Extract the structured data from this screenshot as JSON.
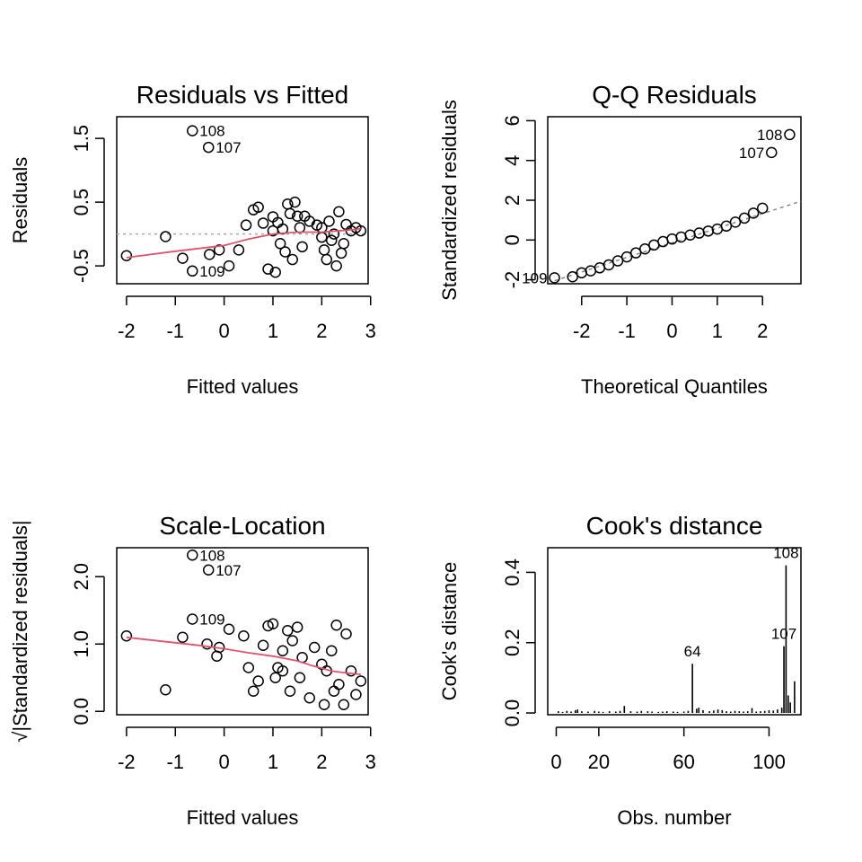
{
  "chart_data": [
    {
      "type": "scatter",
      "title": "Residuals vs Fitted",
      "xlabel": "Fitted values",
      "ylabel": "Residuals",
      "xlim": [
        -2.2,
        2.95
      ],
      "ylim": [
        -0.78,
        1.84
      ],
      "xticks": [
        -2,
        -1,
        0,
        1,
        2,
        3
      ],
      "xtick_labels": [
        "-2",
        "-1",
        "0",
        "1",
        "2",
        "3"
      ],
      "yticks": [
        -0.5,
        0.5,
        1.5
      ],
      "ytick_labels": [
        "-0.5",
        "0.5",
        "1.5"
      ],
      "refline_y": 0,
      "points": [
        [
          -0.65,
          1.62
        ],
        [
          -0.32,
          1.36
        ],
        [
          -0.65,
          -0.58
        ],
        [
          -2.0,
          -0.34
        ],
        [
          -1.2,
          -0.04
        ],
        [
          -0.85,
          -0.38
        ],
        [
          -0.3,
          -0.32
        ],
        [
          -0.1,
          -0.25
        ],
        [
          0.1,
          -0.5
        ],
        [
          0.45,
          0.14
        ],
        [
          0.6,
          0.38
        ],
        [
          0.7,
          0.42
        ],
        [
          0.8,
          0.17
        ],
        [
          0.9,
          -0.55
        ],
        [
          1.0,
          0.27
        ],
        [
          1.05,
          -0.6
        ],
        [
          1.1,
          0.18
        ],
        [
          1.15,
          -0.15
        ],
        [
          1.2,
          0.08
        ],
        [
          1.25,
          -0.28
        ],
        [
          1.3,
          0.47
        ],
        [
          1.35,
          0.32
        ],
        [
          1.4,
          -0.4
        ],
        [
          1.45,
          0.5
        ],
        [
          1.5,
          0.28
        ],
        [
          1.55,
          0.1
        ],
        [
          1.65,
          0.28
        ],
        [
          1.75,
          0.2
        ],
        [
          1.9,
          0.14
        ],
        [
          2.0,
          0.1
        ],
        [
          2.05,
          -0.25
        ],
        [
          2.1,
          -0.4
        ],
        [
          2.15,
          0.2
        ],
        [
          2.2,
          -0.1
        ],
        [
          2.25,
          0.0
        ],
        [
          2.3,
          -0.5
        ],
        [
          2.35,
          0.35
        ],
        [
          2.4,
          -0.3
        ],
        [
          2.5,
          0.15
        ],
        [
          2.6,
          0.05
        ],
        [
          2.7,
          0.1
        ],
        [
          2.8,
          0.05
        ],
        [
          0.3,
          -0.25
        ],
        [
          1.0,
          0.05
        ],
        [
          1.6,
          -0.2
        ],
        [
          2.45,
          -0.15
        ],
        [
          2.0,
          -0.05
        ]
      ],
      "smooth": [
        [
          -2.0,
          -0.37
        ],
        [
          -1.0,
          -0.27
        ],
        [
          0.0,
          -0.18
        ],
        [
          0.5,
          -0.08
        ],
        [
          1.0,
          0.0
        ],
        [
          1.5,
          0.03
        ],
        [
          2.0,
          0.03
        ],
        [
          2.5,
          0.06
        ],
        [
          2.8,
          0.08
        ]
      ],
      "labels": [
        {
          "x": -0.65,
          "y": 1.62,
          "text": "108"
        },
        {
          "x": -0.32,
          "y": 1.36,
          "text": "107"
        },
        {
          "x": -0.65,
          "y": -0.58,
          "text": "109"
        }
      ]
    },
    {
      "type": "scatter",
      "title": "Q-Q Residuals",
      "xlabel": "Theoretical Quantiles",
      "ylabel": "Standardized residuals",
      "xlim": [
        -2.75,
        2.85
      ],
      "ylim": [
        -2.2,
        6.2
      ],
      "xticks": [
        -2,
        -1,
        0,
        1,
        2
      ],
      "xtick_labels": [
        "-2",
        "-1",
        "0",
        "1",
        "2"
      ],
      "yticks": [
        -2,
        0,
        2,
        4,
        6
      ],
      "ytick_labels": [
        "-2",
        "0",
        "2",
        "4",
        "6"
      ],
      "refline": [
        [
          -2.6,
          -2.05
        ],
        [
          2.85,
          1.95
        ]
      ],
      "points": [
        [
          2.6,
          5.3
        ],
        [
          2.2,
          4.4
        ],
        [
          -2.6,
          -1.9
        ],
        [
          -2.2,
          -1.85
        ],
        [
          -2.0,
          -1.65
        ],
        [
          -1.8,
          -1.55
        ],
        [
          -1.6,
          -1.4
        ],
        [
          -1.4,
          -1.25
        ],
        [
          -1.2,
          -1.05
        ],
        [
          -1.0,
          -0.85
        ],
        [
          -0.8,
          -0.65
        ],
        [
          -0.6,
          -0.45
        ],
        [
          -0.4,
          -0.25
        ],
        [
          -0.2,
          -0.08
        ],
        [
          0.0,
          0.05
        ],
        [
          0.2,
          0.15
        ],
        [
          0.4,
          0.25
        ],
        [
          0.6,
          0.35
        ],
        [
          0.8,
          0.45
        ],
        [
          1.0,
          0.55
        ],
        [
          1.2,
          0.7
        ],
        [
          1.4,
          0.9
        ],
        [
          1.6,
          1.1
        ],
        [
          1.8,
          1.35
        ],
        [
          2.0,
          1.6
        ]
      ],
      "labels": [
        {
          "x": 2.6,
          "y": 5.3,
          "text": "108"
        },
        {
          "x": 2.2,
          "y": 4.4,
          "text": "107"
        },
        {
          "x": -2.6,
          "y": -1.9,
          "text": "109"
        }
      ]
    },
    {
      "type": "scatter",
      "title": "Scale-Location",
      "xlabel": "Fitted values",
      "ylabel": "√|Standardized residuals|",
      "xlim": [
        -2.2,
        2.95
      ],
      "ylim": [
        -0.05,
        2.43
      ],
      "xticks": [
        -2,
        -1,
        0,
        1,
        2,
        3
      ],
      "xtick_labels": [
        "-2",
        "-1",
        "0",
        "1",
        "2",
        "3"
      ],
      "yticks": [
        0.0,
        1.0,
        2.0
      ],
      "ytick_labels": [
        "0.0",
        "1.0",
        "2.0"
      ],
      "points": [
        [
          -0.65,
          2.32
        ],
        [
          -0.32,
          2.1
        ],
        [
          -0.65,
          1.37
        ],
        [
          -2.0,
          1.12
        ],
        [
          -1.2,
          0.32
        ],
        [
          -0.85,
          1.1
        ],
        [
          -0.35,
          1.0
        ],
        [
          -0.1,
          0.95
        ],
        [
          -0.15,
          0.82
        ],
        [
          0.1,
          1.22
        ],
        [
          0.4,
          1.12
        ],
        [
          0.5,
          0.65
        ],
        [
          0.6,
          0.3
        ],
        [
          0.8,
          0.98
        ],
        [
          0.9,
          1.27
        ],
        [
          1.0,
          1.3
        ],
        [
          1.05,
          0.5
        ],
        [
          1.1,
          0.65
        ],
        [
          1.2,
          0.9
        ],
        [
          1.3,
          1.2
        ],
        [
          1.35,
          0.3
        ],
        [
          1.4,
          1.05
        ],
        [
          1.5,
          1.25
        ],
        [
          1.6,
          0.8
        ],
        [
          1.75,
          0.2
        ],
        [
          1.85,
          0.95
        ],
        [
          2.0,
          0.7
        ],
        [
          2.05,
          0.1
        ],
        [
          2.1,
          0.6
        ],
        [
          2.2,
          0.9
        ],
        [
          2.3,
          1.28
        ],
        [
          2.35,
          0.4
        ],
        [
          2.45,
          0.1
        ],
        [
          2.5,
          1.15
        ],
        [
          2.6,
          0.6
        ],
        [
          2.7,
          0.25
        ],
        [
          2.8,
          0.45
        ],
        [
          1.2,
          0.6
        ],
        [
          0.7,
          0.45
        ],
        [
          1.55,
          0.5
        ],
        [
          2.25,
          0.3
        ]
      ],
      "smooth": [
        [
          -2.0,
          1.1
        ],
        [
          -1.0,
          1.02
        ],
        [
          -0.5,
          0.98
        ],
        [
          0.0,
          0.93
        ],
        [
          0.5,
          0.87
        ],
        [
          1.0,
          0.82
        ],
        [
          1.5,
          0.75
        ],
        [
          1.8,
          0.68
        ],
        [
          2.2,
          0.6
        ],
        [
          2.5,
          0.57
        ],
        [
          2.8,
          0.55
        ]
      ],
      "labels": [
        {
          "x": -0.65,
          "y": 2.32,
          "text": "108"
        },
        {
          "x": -0.32,
          "y": 2.1,
          "text": "107"
        },
        {
          "x": -0.65,
          "y": 1.37,
          "text": "109"
        }
      ]
    },
    {
      "type": "bar",
      "title": "Cook's distance",
      "xlabel": "Obs. number",
      "ylabel": "Cook's distance",
      "xlim": [
        -4,
        115
      ],
      "ylim": [
        -0.005,
        0.47
      ],
      "xticks": [
        0,
        20,
        60,
        100
      ],
      "xtick_labels": [
        "0",
        "20",
        "60",
        "100"
      ],
      "yticks": [
        0.0,
        0.2,
        0.4
      ],
      "ytick_labels": [
        "0.0",
        "0.2",
        "0.4"
      ],
      "bars": [
        [
          1,
          0.005
        ],
        [
          3,
          0.003
        ],
        [
          5,
          0.006
        ],
        [
          7,
          0.004
        ],
        [
          9,
          0.008
        ],
        [
          10,
          0.01
        ],
        [
          12,
          0.005
        ],
        [
          15,
          0.004
        ],
        [
          18,
          0.006
        ],
        [
          20,
          0.004
        ],
        [
          22,
          0.003
        ],
        [
          25,
          0.005
        ],
        [
          28,
          0.004
        ],
        [
          30,
          0.006
        ],
        [
          32,
          0.02
        ],
        [
          35,
          0.005
        ],
        [
          38,
          0.004
        ],
        [
          40,
          0.006
        ],
        [
          43,
          0.005
        ],
        [
          45,
          0.004
        ],
        [
          48,
          0.003
        ],
        [
          50,
          0.004
        ],
        [
          52,
          0.005
        ],
        [
          55,
          0.004
        ],
        [
          57,
          0.003
        ],
        [
          60,
          0.004
        ],
        [
          62,
          0.006
        ],
        [
          64,
          0.14
        ],
        [
          66,
          0.012
        ],
        [
          67,
          0.015
        ],
        [
          69,
          0.008
        ],
        [
          72,
          0.005
        ],
        [
          74,
          0.007
        ],
        [
          76,
          0.01
        ],
        [
          78,
          0.008
        ],
        [
          80,
          0.005
        ],
        [
          82,
          0.004
        ],
        [
          84,
          0.006
        ],
        [
          86,
          0.005
        ],
        [
          88,
          0.004
        ],
        [
          90,
          0.005
        ],
        [
          92,
          0.014
        ],
        [
          94,
          0.004
        ],
        [
          96,
          0.005
        ],
        [
          98,
          0.006
        ],
        [
          100,
          0.008
        ],
        [
          102,
          0.007
        ],
        [
          104,
          0.01
        ],
        [
          106,
          0.015
        ],
        [
          107,
          0.19
        ],
        [
          108,
          0.42
        ],
        [
          109,
          0.05
        ],
        [
          110,
          0.03
        ],
        [
          112,
          0.09
        ]
      ],
      "labels": [
        {
          "x": 64,
          "y": 0.14,
          "text": "64"
        },
        {
          "x": 107,
          "y": 0.19,
          "text": "107"
        },
        {
          "x": 108,
          "y": 0.42,
          "text": "108"
        }
      ]
    }
  ]
}
